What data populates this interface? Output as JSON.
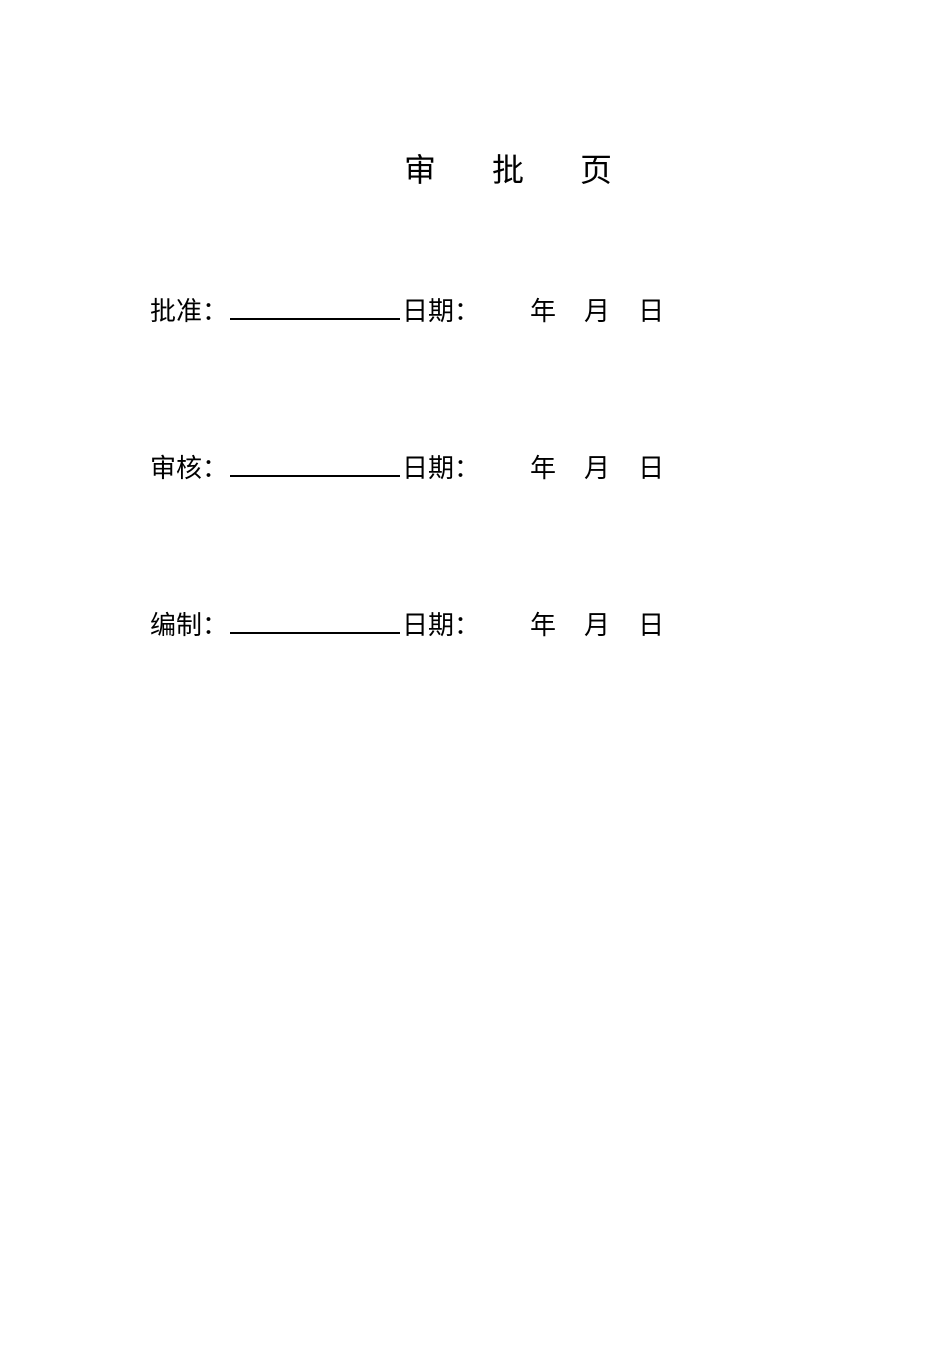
{
  "title": "审 批 页",
  "rows": [
    {
      "label": "批准：",
      "date_label": "日期：",
      "year": "年",
      "month": "月",
      "day": "日"
    },
    {
      "label": "审核：",
      "date_label": "日期：",
      "year": "年",
      "month": "月",
      "day": "日"
    },
    {
      "label": "编制：",
      "date_label": "日期：",
      "year": "年",
      "month": "月",
      "day": "日"
    }
  ],
  "styling": {
    "background_color": "#ffffff",
    "text_color": "#000000",
    "title_fontsize": 32,
    "body_fontsize": 26,
    "underline_width": 170,
    "row_spacing": 120
  }
}
